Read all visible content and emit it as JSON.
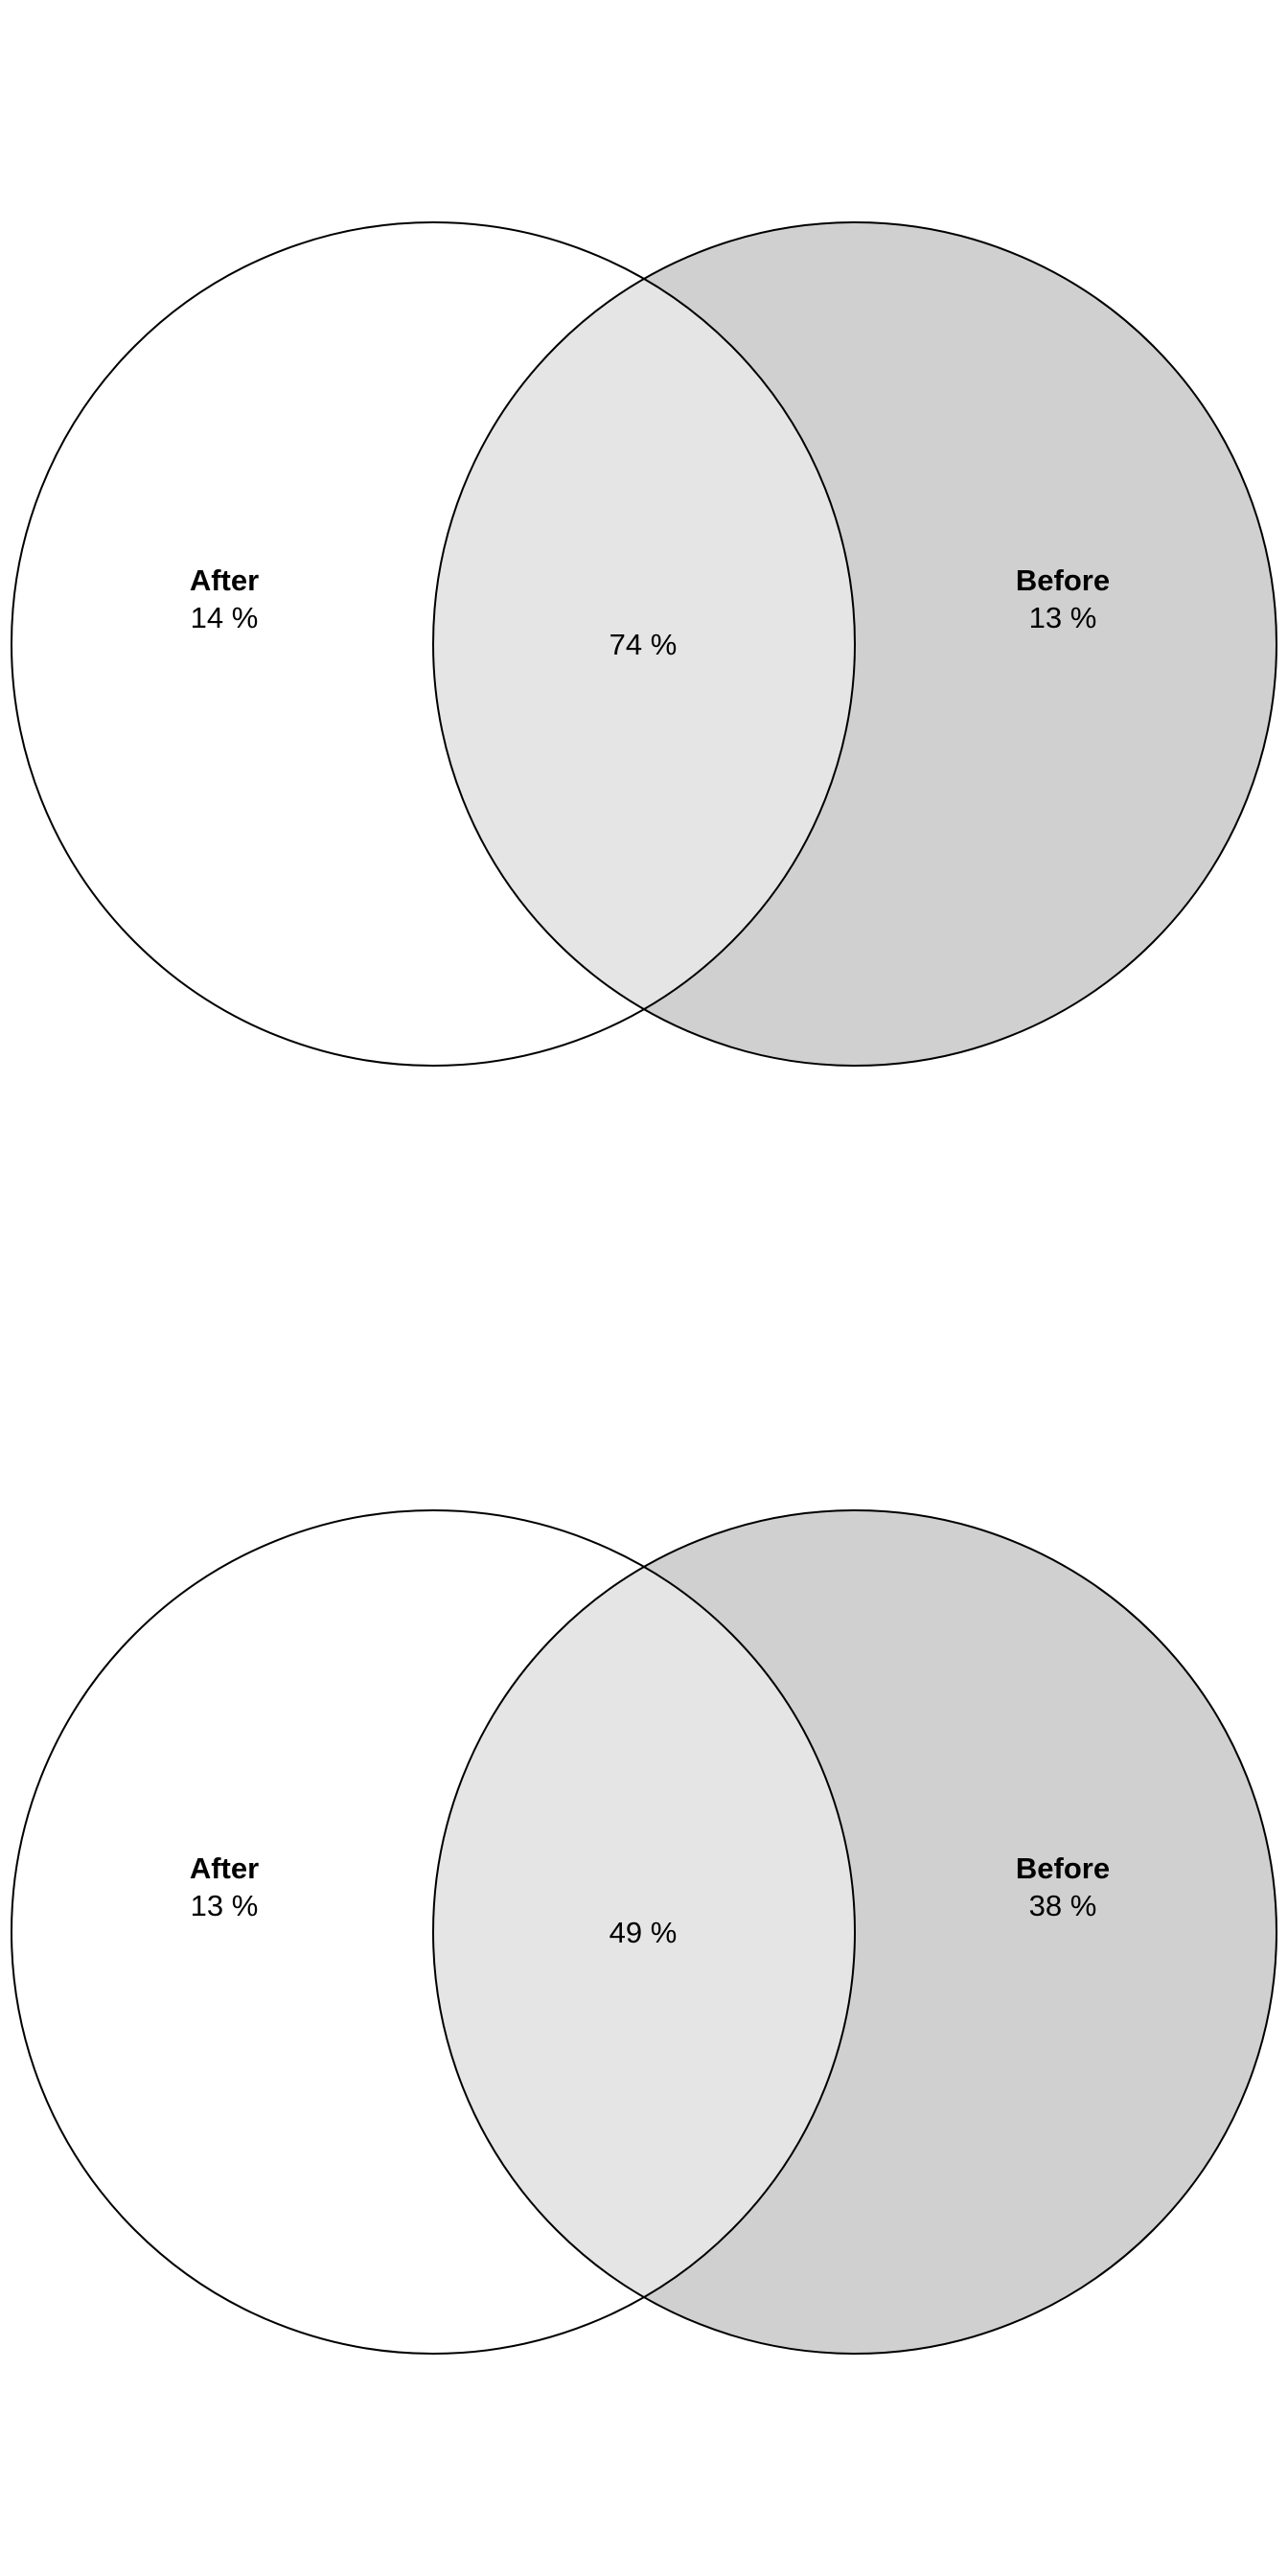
{
  "colors": {
    "left_only": "#ffffff",
    "right_only": "#d0d0d0",
    "overlap": "#e5e5e5",
    "outline": "#000000"
  },
  "venns": [
    {
      "left": {
        "label": "After",
        "percent": "14 %"
      },
      "right": {
        "label": "Before",
        "percent": "13 %"
      },
      "overlap": {
        "percent": "74 %"
      }
    },
    {
      "left": {
        "label": "After",
        "percent": "13 %"
      },
      "right": {
        "label": "Before",
        "percent": "38 %"
      },
      "overlap": {
        "percent": "49 %"
      }
    }
  ]
}
